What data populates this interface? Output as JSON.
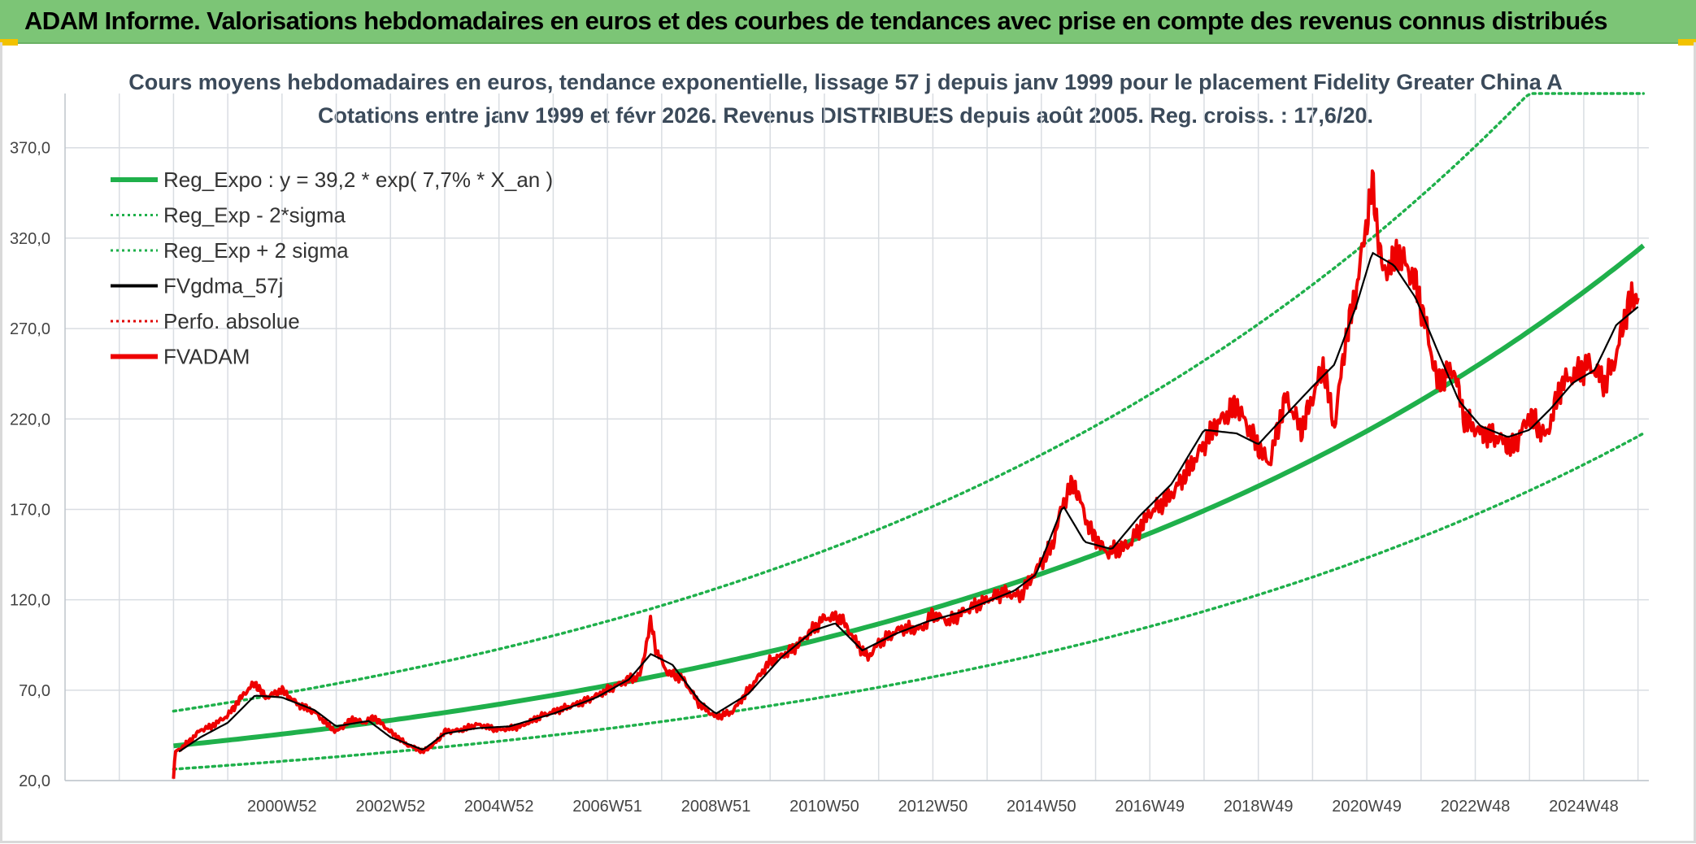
{
  "banner": {
    "title": "ADAM Informe. Valorisations hebdomadaires en euros et des courbes de tendances avec prise en compte des revenus connus distribués"
  },
  "chart_data": {
    "type": "line",
    "title": "Cours moyens hebdomadaires en euros, tendance exponentielle, lissage 57 j depuis janv 1999 pour le placement Fidelity Greater China A",
    "subtitle": "Cotations entre janv 1999 et févr 2026. Revenus DISTRIBUES depuis août 2005. Reg. croiss. : 17,6/20.",
    "ylim": [
      20,
      400
    ],
    "xlim": [
      1997.0,
      2026.2
    ],
    "yticks": [
      "370,0",
      "320,0",
      "270,0",
      "220,0",
      "170,0",
      "120,0",
      "70,0",
      "20,0"
    ],
    "ytick_values": [
      370,
      320,
      270,
      220,
      170,
      120,
      70,
      20
    ],
    "xticks": [
      "2000W52",
      "2002W52",
      "2004W52",
      "2006W51",
      "2008W51",
      "2010W50",
      "2012W50",
      "2014W50",
      "2016W49",
      "2018W49",
      "2020W49",
      "2022W48",
      "2024W48"
    ],
    "xtick_values": [
      2001.0,
      2003.0,
      2005.0,
      2007.0,
      2009.0,
      2011.0,
      2013.0,
      2015.0,
      2017.0,
      2019.0,
      2021.0,
      2023.0,
      2025.0
    ],
    "grid": true,
    "legend": "top-left",
    "regression": {
      "a": 39.2,
      "rate": 0.077,
      "x0": 1999.0,
      "sigma_factor": 1.49,
      "cap": 400
    },
    "series": [
      {
        "name": "Reg_Expo : y = 39,2 * exp( 7,7% *  X_an )",
        "color": "#1fb04b",
        "style": "solid-thick"
      },
      {
        "name": "Reg_Exp - 2*sigma",
        "color": "#1fb04b",
        "style": "dotted"
      },
      {
        "name": "Reg_Exp + 2 sigma",
        "color": "#1fb04b",
        "style": "dotted"
      },
      {
        "name": "FVgdma_57j",
        "color": "#000000",
        "style": "solid"
      },
      {
        "name": "Perfo. absolue",
        "color": "#e00000",
        "style": "dotted"
      },
      {
        "name": "FVADAM",
        "color": "#ee0000",
        "style": "solid-thick",
        "x": [
          1999.0,
          1999.03,
          1999.1,
          1999.3,
          1999.5,
          1999.7,
          2000.0,
          2000.3,
          2000.5,
          2000.7,
          2001.0,
          2001.3,
          2001.6,
          2001.8,
          2002.0,
          2002.3,
          2002.5,
          2002.7,
          2003.0,
          2003.3,
          2003.6,
          2003.8,
          2004.0,
          2004.3,
          2004.6,
          2005.0,
          2005.4,
          2005.8,
          2006.2,
          2006.6,
          2007.0,
          2007.4,
          2007.6,
          2007.8,
          2007.9,
          2008.1,
          2008.4,
          2008.7,
          2009.0,
          2009.3,
          2009.6,
          2010.0,
          2010.4,
          2010.8,
          2011.0,
          2011.3,
          2011.6,
          2011.8,
          2012.0,
          2012.4,
          2012.8,
          2013.0,
          2013.3,
          2013.6,
          2014.0,
          2014.3,
          2014.6,
          2014.9,
          2015.2,
          2015.4,
          2015.6,
          2015.9,
          2016.2,
          2016.6,
          2017.0,
          2017.4,
          2017.8,
          2018.2,
          2018.6,
          2018.9,
          2019.2,
          2019.5,
          2019.8,
          2020.0,
          2020.2,
          2020.4,
          2020.6,
          2020.8,
          2020.95,
          2021.1,
          2021.3,
          2021.6,
          2021.9,
          2022.1,
          2022.3,
          2022.6,
          2022.8,
          2023.1,
          2023.4,
          2023.7,
          2024.0,
          2024.3,
          2024.6,
          2024.8,
          2025.1,
          2025.4,
          2025.6,
          2025.8,
          2026.0
        ],
        "values": [
          21,
          36,
          37,
          42,
          48,
          50,
          56,
          68,
          74,
          66,
          70,
          62,
          58,
          52,
          47,
          54,
          52,
          55,
          47,
          40,
          36,
          40,
          47,
          48,
          51,
          48,
          50,
          56,
          60,
          64,
          70,
          76,
          78,
          108,
          92,
          80,
          76,
          62,
          55,
          58,
          70,
          86,
          92,
          104,
          110,
          110,
          96,
          88,
          96,
          104,
          104,
          112,
          108,
          114,
          120,
          124,
          122,
          136,
          150,
          174,
          185,
          158,
          146,
          150,
          168,
          178,
          196,
          216,
          228,
          210,
          195,
          232,
          214,
          232,
          250,
          215,
          262,
          290,
          320,
          350,
          300,
          312,
          295,
          270,
          240,
          248,
          220,
          212,
          210,
          204,
          222,
          210,
          240,
          244,
          250,
          240,
          255,
          282,
          290
        ]
      },
      {
        "name": "FVgdma_57j_values",
        "x": [
          1999.1,
          1999.5,
          2000.0,
          2000.5,
          2001.0,
          2001.6,
          2002.0,
          2002.6,
          2003.0,
          2003.6,
          2004.0,
          2004.6,
          2005.2,
          2006.0,
          2006.8,
          2007.4,
          2007.8,
          2008.2,
          2008.7,
          2009.0,
          2009.6,
          2010.2,
          2010.8,
          2011.2,
          2011.7,
          2012.3,
          2012.9,
          2013.5,
          2014.0,
          2014.5,
          2014.9,
          2015.4,
          2015.8,
          2016.3,
          2016.8,
          2017.4,
          2018.0,
          2018.6,
          2019.0,
          2019.5,
          2020.0,
          2020.4,
          2020.8,
          2021.1,
          2021.5,
          2021.9,
          2022.3,
          2022.7,
          2023.1,
          2023.6,
          2024.0,
          2024.4,
          2024.8,
          2025.2,
          2025.6,
          2026.0
        ],
        "values": [
          36,
          44,
          52,
          67,
          66,
          59,
          50,
          53,
          44,
          37,
          46,
          49,
          50,
          57,
          66,
          76,
          90,
          84,
          64,
          57,
          68,
          88,
          103,
          107,
          92,
          101,
          108,
          113,
          119,
          125,
          134,
          172,
          152,
          148,
          166,
          184,
          214,
          212,
          206,
          222,
          238,
          250,
          282,
          312,
          305,
          287,
          258,
          230,
          216,
          210,
          214,
          226,
          240,
          247,
          272,
          282
        ]
      }
    ]
  }
}
